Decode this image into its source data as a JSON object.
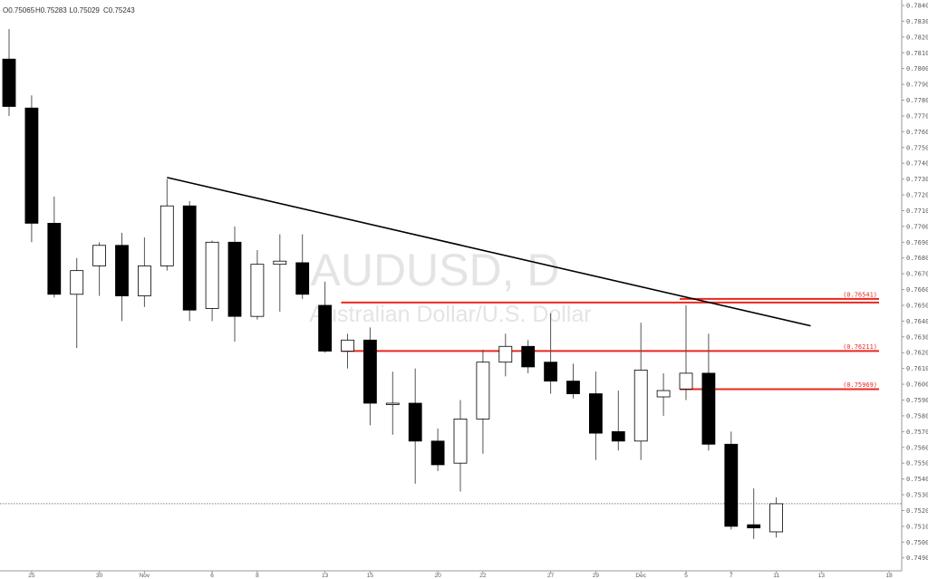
{
  "header": {
    "ohlc": [
      {
        "label": "O",
        "value": "0.75065"
      },
      {
        "label": "H",
        "value": "0.75283"
      },
      {
        "label": "L",
        "value": "0.75029"
      },
      {
        "label": "C",
        "value": "0.75243"
      }
    ]
  },
  "watermark": {
    "symbol": "AUDUSD, D",
    "description": "Australian Dollar/U.S. Dollar"
  },
  "colors": {
    "down_candle": "#000000",
    "up_candle": "#ffffff",
    "candle_border": "#000000",
    "level_line": "#e8281e",
    "trend_line": "#000000"
  },
  "chart_data": {
    "type": "candlestick",
    "y_range": [
      0.749,
      0.784
    ],
    "y_ticks": [
      "0.78400",
      "0.78300",
      "0.78200",
      "0.78100",
      "0.78000",
      "0.77900",
      "0.77800",
      "0.77700",
      "0.77600",
      "0.77500",
      "0.77400",
      "0.77300",
      "0.77200",
      "0.77100",
      "0.77000",
      "0.76900",
      "0.76800",
      "0.76700",
      "0.76600",
      "0.76500",
      "0.76400",
      "0.76300",
      "0.76200",
      "0.76100",
      "0.76000",
      "0.75900",
      "0.75800",
      "0.75700",
      "0.75600",
      "0.75500",
      "0.75400",
      "0.75300",
      "0.75200",
      "0.75100",
      "0.75000",
      "0.74900"
    ],
    "x_ticks": [
      {
        "label": "25",
        "bar": 1
      },
      {
        "label": "30",
        "bar": 4
      },
      {
        "label": "Nov",
        "bar": 6
      },
      {
        "label": "6",
        "bar": 9
      },
      {
        "label": "8",
        "bar": 11
      },
      {
        "label": "13",
        "bar": 14
      },
      {
        "label": "15",
        "bar": 16
      },
      {
        "label": "20",
        "bar": 19
      },
      {
        "label": "22",
        "bar": 21
      },
      {
        "label": "27",
        "bar": 24
      },
      {
        "label": "29",
        "bar": 26
      },
      {
        "label": "Dec",
        "bar": 28
      },
      {
        "label": "5",
        "bar": 30
      },
      {
        "label": "7",
        "bar": 32
      },
      {
        "label": "11",
        "bar": 34
      },
      {
        "label": "13",
        "bar": 36
      },
      {
        "label": "18",
        "bar": 39
      }
    ],
    "candles": [
      {
        "o": 0.7806,
        "h": 0.7825,
        "l": 0.777,
        "c": 0.7776
      },
      {
        "o": 0.7775,
        "h": 0.7783,
        "l": 0.769,
        "c": 0.7702
      },
      {
        "o": 0.7702,
        "h": 0.7719,
        "l": 0.7655,
        "c": 0.7657
      },
      {
        "o": 0.7657,
        "h": 0.768,
        "l": 0.7623,
        "c": 0.7672
      },
      {
        "o": 0.7675,
        "h": 0.769,
        "l": 0.7656,
        "c": 0.7688
      },
      {
        "o": 0.7688,
        "h": 0.7696,
        "l": 0.764,
        "c": 0.7656
      },
      {
        "o": 0.7656,
        "h": 0.7693,
        "l": 0.7649,
        "c": 0.7675
      },
      {
        "o": 0.7675,
        "h": 0.773,
        "l": 0.7672,
        "c": 0.7713
      },
      {
        "o": 0.7713,
        "h": 0.7716,
        "l": 0.764,
        "c": 0.7647
      },
      {
        "o": 0.7648,
        "h": 0.7691,
        "l": 0.764,
        "c": 0.769
      },
      {
        "o": 0.769,
        "h": 0.77,
        "l": 0.7627,
        "c": 0.7643
      },
      {
        "o": 0.7643,
        "h": 0.7685,
        "l": 0.7641,
        "c": 0.7676
      },
      {
        "o": 0.7676,
        "h": 0.7695,
        "l": 0.7646,
        "c": 0.7678
      },
      {
        "o": 0.7677,
        "h": 0.7695,
        "l": 0.7654,
        "c": 0.7657
      },
      {
        "o": 0.765,
        "h": 0.7665,
        "l": 0.762,
        "c": 0.7621
      },
      {
        "o": 0.7621,
        "h": 0.7632,
        "l": 0.761,
        "c": 0.7628
      },
      {
        "o": 0.7628,
        "h": 0.7636,
        "l": 0.7574,
        "c": 0.7588
      },
      {
        "o": 0.7588,
        "h": 0.7608,
        "l": 0.7568,
        "c": 0.7588
      },
      {
        "o": 0.7588,
        "h": 0.761,
        "l": 0.7537,
        "c": 0.7564
      },
      {
        "o": 0.7564,
        "h": 0.7572,
        "l": 0.7545,
        "c": 0.7549
      },
      {
        "o": 0.755,
        "h": 0.759,
        "l": 0.7532,
        "c": 0.7578
      },
      {
        "o": 0.7578,
        "h": 0.7622,
        "l": 0.7556,
        "c": 0.7614
      },
      {
        "o": 0.7614,
        "h": 0.7632,
        "l": 0.7605,
        "c": 0.7624
      },
      {
        "o": 0.7624,
        "h": 0.7628,
        "l": 0.7607,
        "c": 0.7611
      },
      {
        "o": 0.7614,
        "h": 0.7645,
        "l": 0.7594,
        "c": 0.7602
      },
      {
        "o": 0.7602,
        "h": 0.7613,
        "l": 0.7591,
        "c": 0.7594
      },
      {
        "o": 0.7594,
        "h": 0.7608,
        "l": 0.7552,
        "c": 0.7569
      },
      {
        "o": 0.757,
        "h": 0.7596,
        "l": 0.7558,
        "c": 0.7564
      },
      {
        "o": 0.7564,
        "h": 0.7639,
        "l": 0.7552,
        "c": 0.7609
      },
      {
        "o": 0.7592,
        "h": 0.7607,
        "l": 0.758,
        "c": 0.7596
      },
      {
        "o": 0.7597,
        "h": 0.765,
        "l": 0.759,
        "c": 0.7607
      },
      {
        "o": 0.7607,
        "h": 0.7632,
        "l": 0.7558,
        "c": 0.7562
      },
      {
        "o": 0.7562,
        "h": 0.757,
        "l": 0.7508,
        "c": 0.751
      },
      {
        "o": 0.7511,
        "h": 0.7534,
        "l": 0.7502,
        "c": 0.7509
      },
      {
        "o": 0.75065,
        "h": 0.75283,
        "l": 0.75029,
        "c": 0.75243
      }
    ],
    "levels": [
      {
        "label": "(0.76541)",
        "value": 0.76541,
        "from_bar": 30
      },
      {
        "label": "(0.76211)",
        "value": 0.76211,
        "from_bar": 15
      },
      {
        "label": "(0.75969)",
        "value": 0.75969,
        "from_bar": 30
      }
    ],
    "extra_levels": [
      {
        "value": 0.76518,
        "from_bar": 15
      }
    ],
    "trendline": {
      "from_bar": 7,
      "from_value": 0.7731,
      "to_bar": 35,
      "to_value": 0.7637
    },
    "last_price": 0.75243
  }
}
